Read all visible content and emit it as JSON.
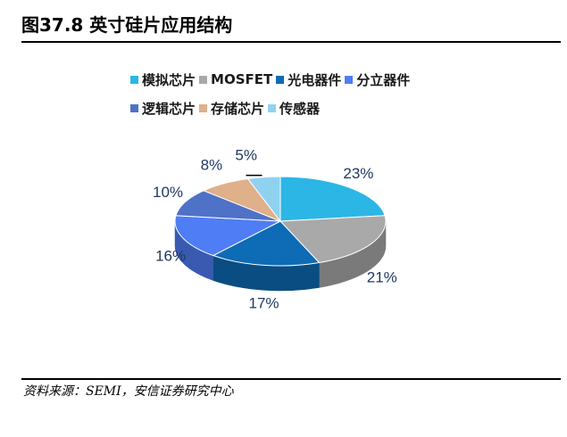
{
  "title": "图37.8 英寸硅片应用结构",
  "source": "资料来源：SEMI，安信证券研究中心",
  "chart_data": {
    "type": "pie",
    "three_d": true,
    "categories": [
      "模拟芯片",
      "MOSFET",
      "光电器件",
      "分立器件",
      "逻辑芯片",
      "存储芯片",
      "传感器"
    ],
    "values": [
      23,
      21,
      17,
      16,
      10,
      8,
      5
    ],
    "labels": [
      "23%",
      "21%",
      "17%",
      "16%",
      "10%",
      "8%",
      "5%"
    ],
    "colors": [
      "#2bb6e6",
      "#a9a9a9",
      "#0e6bb5",
      "#4f7df5",
      "#4f71c7",
      "#dfb08a",
      "#8fd2f0"
    ],
    "legend_placement": "top",
    "legend_rows": [
      [
        0,
        1,
        2,
        3
      ],
      [
        4,
        5,
        6
      ]
    ]
  }
}
